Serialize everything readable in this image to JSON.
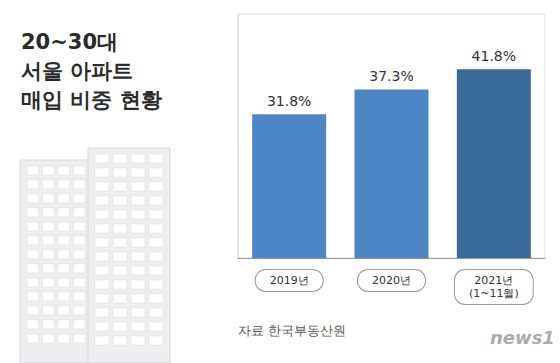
{
  "chart_data": {
    "type": "bar",
    "title": "20~30대\n서울 아파트\n매입 비중 현황",
    "categories": [
      "2019년",
      "2020년",
      "2021년\n(1~11월)"
    ],
    "values": [
      31.8,
      37.3,
      41.8
    ],
    "value_labels": [
      "31.8%",
      "37.3%",
      "41.8%"
    ],
    "colors": [
      "#4d86c6",
      "#4d86c6",
      "#3b6b98"
    ],
    "ylim": [
      0,
      54
    ],
    "yticks": [
      0,
      54
    ],
    "grid": false,
    "data_labels": true,
    "tick_labels": "x",
    "annotations": [
      "자료 한국부동산원",
      "news1"
    ]
  }
}
